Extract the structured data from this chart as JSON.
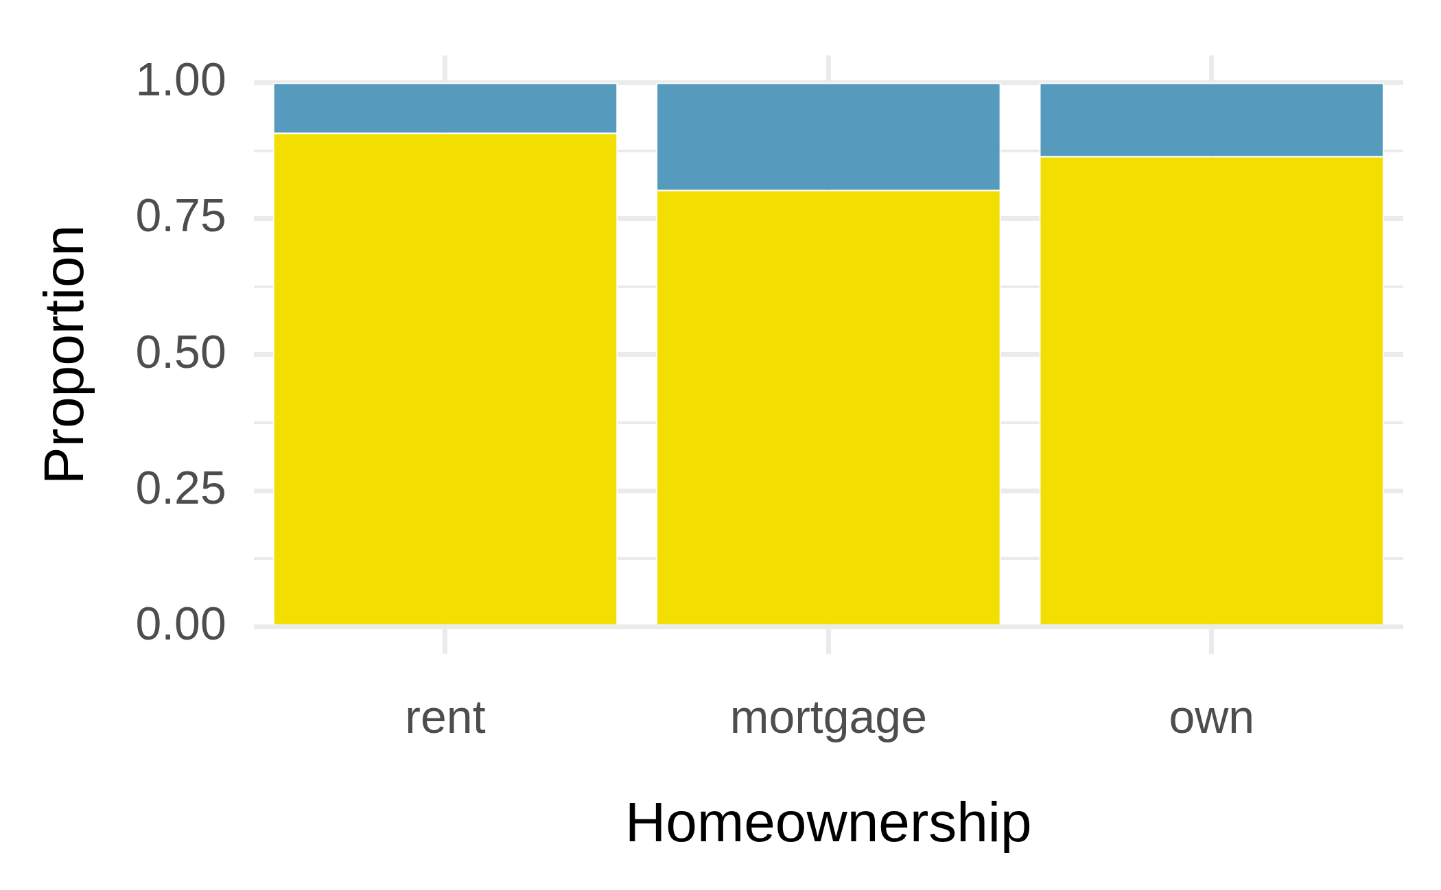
{
  "chart_data": {
    "type": "bar",
    "xlabel": "Homeownership",
    "ylabel": "Proportion",
    "categories": [
      "rent",
      "mortgage",
      "own"
    ],
    "stacked": true,
    "series": [
      {
        "color": "#f2de00",
        "values": [
          0.908,
          0.803,
          0.865
        ]
      },
      {
        "color": "#569bbd",
        "values": [
          0.092,
          0.197,
          0.135
        ]
      }
    ],
    "ylim": [
      -0.05,
      1.05
    ],
    "yticks": [
      {
        "value": 0,
        "label": "0.00"
      },
      {
        "value": 0.125,
        "label": null
      },
      {
        "value": 0.25,
        "label": "0.25"
      },
      {
        "value": 0.375,
        "label": null
      },
      {
        "value": 0.5,
        "label": "0.50"
      },
      {
        "value": 0.625,
        "label": null
      },
      {
        "value": 0.75,
        "label": "0.75"
      },
      {
        "value": 0.875,
        "label": null
      },
      {
        "value": 1,
        "label": "1.00"
      }
    ],
    "grid": true,
    "legend": false
  }
}
